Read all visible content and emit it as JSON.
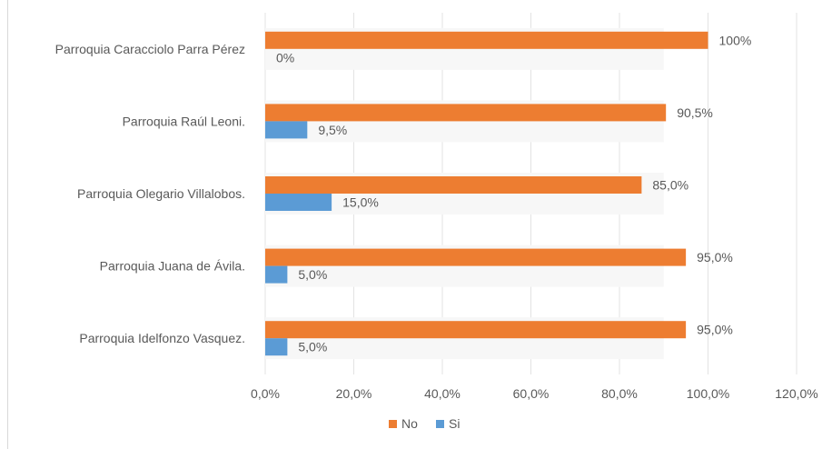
{
  "chart_data": {
    "type": "bar",
    "orientation": "horizontal",
    "categories": [
      "Parroquia Caracciolo Parra Pérez",
      "Parroquia Raúl Leoni.",
      "Parroquia Olegario Villalobos.",
      "Parroquia Juana de Ávila.",
      "Parroquia Idelfonzo Vasquez."
    ],
    "series": [
      {
        "name": "No",
        "color": "#ed7d31",
        "values": [
          100,
          90.5,
          85.0,
          95.0,
          95.0
        ],
        "labels": [
          "100%",
          "90,5%",
          "85,0%",
          "95,0%",
          "95,0%"
        ]
      },
      {
        "name": "Si",
        "color": "#5b9bd5",
        "values": [
          0,
          9.5,
          15.0,
          5.0,
          5.0
        ],
        "labels": [
          "0%",
          "9,5%",
          "15,0%",
          "5,0%",
          "5,0%"
        ]
      }
    ],
    "xlim": [
      0,
      120
    ],
    "xticks": [
      0,
      20,
      40,
      60,
      80,
      100,
      120
    ],
    "xtick_labels": [
      "0,0%",
      "20,0%",
      "40,0%",
      "60,0%",
      "80,0%",
      "100,0%",
      "120,0%"
    ],
    "title": "",
    "xlabel": "",
    "ylabel": "",
    "grid": true,
    "legend_position": "bottom"
  }
}
